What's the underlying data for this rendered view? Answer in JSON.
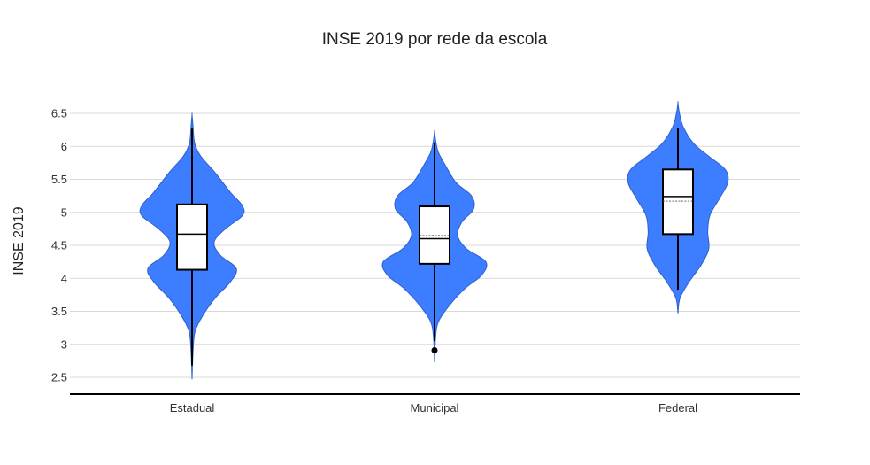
{
  "chart_data": {
    "type": "violin",
    "title": "INSE 2019 por rede da escola",
    "ylabel": "INSE 2019",
    "xlabel": "",
    "ylim": [
      2.4,
      6.7
    ],
    "yticks": [
      "2.5",
      "3",
      "3.5",
      "4",
      "4.5",
      "5",
      "5.5",
      "6",
      "6.5"
    ],
    "grid": true,
    "colors": {
      "violin": "#3d7dff",
      "violin_edge": "#2f5fcc",
      "box": "#ffffff",
      "whisker": "#000000",
      "gridline": "#d9d9d9"
    },
    "categories": [
      "Estadual",
      "Municipal",
      "Federal"
    ],
    "series": [
      {
        "category": "Estadual",
        "min": 2.68,
        "q1": 4.13,
        "median": 4.67,
        "mean": 4.64,
        "q3": 5.12,
        "max": 6.27,
        "outliers": [],
        "violin_range": [
          2.47,
          6.48
        ],
        "density": [
          [
            2.47,
            0.0
          ],
          [
            2.9,
            0.02
          ],
          [
            3.2,
            0.06
          ],
          [
            3.45,
            0.22
          ],
          [
            3.7,
            0.45
          ],
          [
            3.95,
            0.75
          ],
          [
            4.15,
            0.86
          ],
          [
            4.35,
            0.55
          ],
          [
            4.55,
            0.43
          ],
          [
            4.75,
            0.65
          ],
          [
            4.95,
            0.98
          ],
          [
            5.1,
            0.98
          ],
          [
            5.3,
            0.75
          ],
          [
            5.6,
            0.45
          ],
          [
            5.85,
            0.17
          ],
          [
            6.05,
            0.05
          ],
          [
            6.3,
            0.02
          ],
          [
            6.48,
            0.0
          ]
        ]
      },
      {
        "category": "Municipal",
        "min": 3.05,
        "q1": 4.22,
        "median": 4.6,
        "mean": 4.65,
        "q3": 5.09,
        "max": 6.05,
        "outliers": [
          2.91
        ],
        "violin_range": [
          2.73,
          6.22
        ],
        "density": [
          [
            2.73,
            0.0
          ],
          [
            3.1,
            0.02
          ],
          [
            3.35,
            0.08
          ],
          [
            3.6,
            0.3
          ],
          [
            3.85,
            0.6
          ],
          [
            4.05,
            0.92
          ],
          [
            4.25,
            1.0
          ],
          [
            4.45,
            0.62
          ],
          [
            4.65,
            0.45
          ],
          [
            4.85,
            0.53
          ],
          [
            5.05,
            0.76
          ],
          [
            5.25,
            0.72
          ],
          [
            5.45,
            0.42
          ],
          [
            5.7,
            0.22
          ],
          [
            5.9,
            0.08
          ],
          [
            6.05,
            0.03
          ],
          [
            6.22,
            0.0
          ]
        ]
      },
      {
        "category": "Federal",
        "min": 3.83,
        "q1": 4.67,
        "median": 5.24,
        "mean": 5.17,
        "q3": 5.65,
        "max": 6.28,
        "outliers": [],
        "violin_range": [
          3.47,
          6.66
        ],
        "density": [
          [
            3.47,
            0.0
          ],
          [
            3.7,
            0.04
          ],
          [
            3.95,
            0.22
          ],
          [
            4.2,
            0.45
          ],
          [
            4.45,
            0.6
          ],
          [
            4.7,
            0.58
          ],
          [
            4.95,
            0.62
          ],
          [
            5.2,
            0.8
          ],
          [
            5.45,
            0.97
          ],
          [
            5.65,
            0.92
          ],
          [
            5.85,
            0.6
          ],
          [
            6.05,
            0.3
          ],
          [
            6.3,
            0.1
          ],
          [
            6.5,
            0.03
          ],
          [
            6.66,
            0.0
          ]
        ]
      }
    ]
  }
}
